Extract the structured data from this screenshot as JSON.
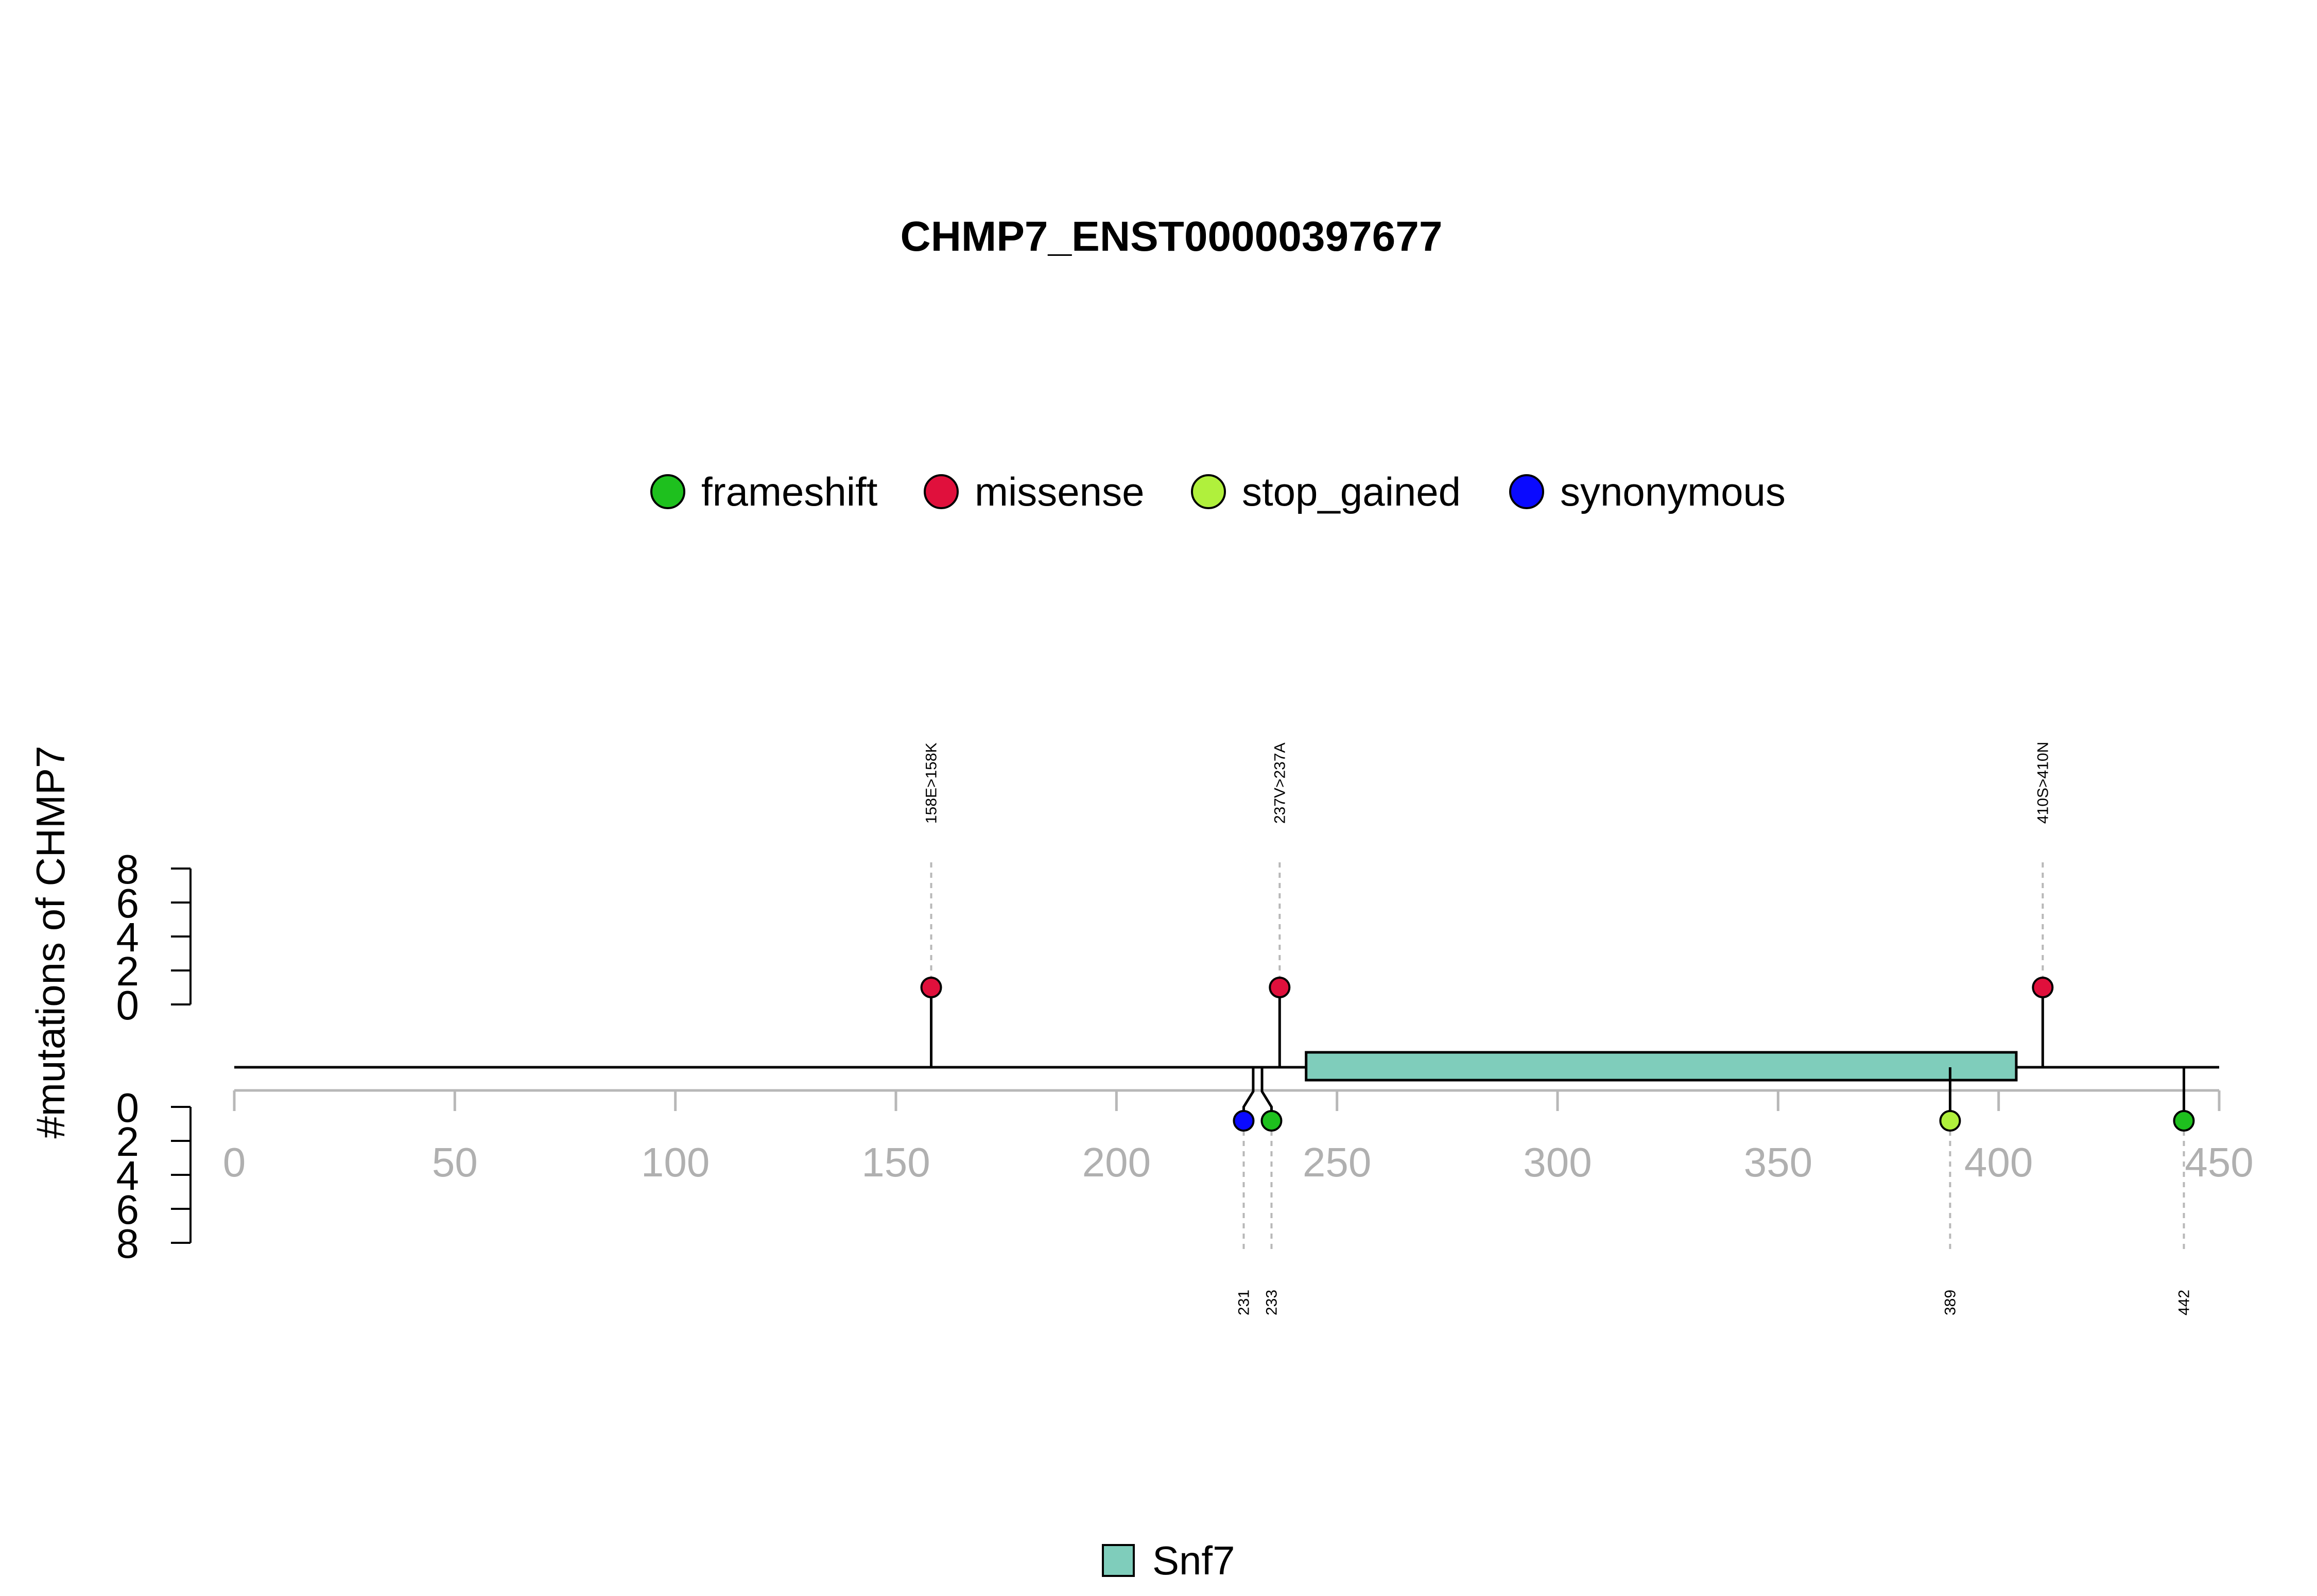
{
  "chart_data": {
    "type": "lollipop",
    "title": "CHMP7_ENST00000397677",
    "ylabel": "#mutations of CHMP7",
    "xlim": [
      0,
      450
    ],
    "x_ticks": [
      0,
      50,
      100,
      150,
      200,
      250,
      300,
      350,
      400,
      450
    ],
    "y_ticks": [
      0,
      2,
      4,
      6,
      8
    ],
    "legend": [
      {
        "label": "frameshift",
        "color": "#1ec01e"
      },
      {
        "label": "missense",
        "color": "#e0103c"
      },
      {
        "label": "stop_gained",
        "color": "#b0f03c"
      },
      {
        "label": "synonymous",
        "color": "#0a0aff"
      }
    ],
    "upper_mutations": [
      {
        "position": 158,
        "count": 1,
        "type": "missense",
        "label": "158E>158K"
      },
      {
        "position": 237,
        "count": 1,
        "type": "missense",
        "label": "237V>237A"
      },
      {
        "position": 410,
        "count": 1,
        "type": "missense",
        "label": "410S>410N"
      }
    ],
    "lower_mutations": [
      {
        "position": 231,
        "count": 1,
        "type": "synonymous",
        "label": "231"
      },
      {
        "position": 233,
        "count": 1,
        "type": "frameshift",
        "label": "233"
      },
      {
        "position": 389,
        "count": 1,
        "type": "stop_gained",
        "label": "389"
      },
      {
        "position": 442,
        "count": 1,
        "type": "frameshift",
        "label": "442"
      }
    ],
    "domains": [
      {
        "name": "Snf7",
        "start": 243,
        "end": 404,
        "color": "#7fcdbb"
      }
    ]
  }
}
